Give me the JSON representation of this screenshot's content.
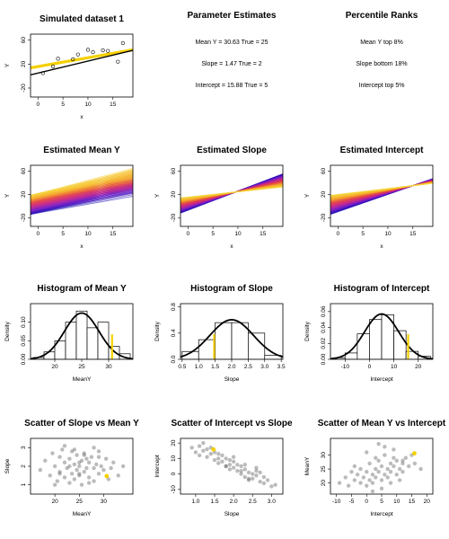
{
  "colors": {
    "highlight": "#f5d000",
    "black": "#000000",
    "scatter": "#555555"
  },
  "chart_data": [
    {
      "id": "sim",
      "type": "scatter",
      "title": "Simulated dataset 1",
      "xlabel": "x",
      "ylabel": "Y",
      "xlim": [
        -1.5,
        19
      ],
      "ylim": [
        -35,
        70
      ],
      "xticks": [
        0,
        5,
        10,
        15
      ],
      "yticks": [
        -20,
        20,
        60
      ],
      "points_x": [
        1,
        3,
        4,
        7,
        8,
        10,
        11,
        13,
        14,
        16,
        17
      ],
      "points_y": [
        5,
        16,
        29,
        28,
        36,
        44,
        40,
        43,
        42,
        24,
        55
      ],
      "fit_line": {
        "intercept": 15.88,
        "slope": 1.47
      },
      "true_line": {
        "intercept": 5,
        "slope": 2
      }
    },
    {
      "id": "params",
      "type": "table",
      "title": "Parameter Estimates",
      "lines": [
        "Mean Y = 30.63 True = 25",
        "Slope = 1.47 True = 2",
        "Intercept = 15.88 True = 5"
      ]
    },
    {
      "id": "ranks",
      "type": "table",
      "title": "Percentile Ranks",
      "lines": [
        "Mean Y top 8%",
        "Slope bottom 18%",
        "Intercept top 5%"
      ]
    },
    {
      "id": "lines_mean",
      "type": "line",
      "title": "Estimated Mean Y",
      "xlabel": "x",
      "ylabel": "Y",
      "xlim": [
        -1.5,
        19
      ],
      "ylim": [
        -35,
        70
      ],
      "xticks": [
        0,
        5,
        10,
        15
      ],
      "yticks": [
        -20,
        20,
        60
      ],
      "n_lines": 100,
      "intercept_range": [
        -12,
        22
      ],
      "slope_range": [
        1.5,
        2.4
      ],
      "color_by": "mean"
    },
    {
      "id": "lines_slope",
      "type": "line",
      "title": "Estimated Slope",
      "xlabel": "x",
      "ylabel": "Y",
      "xlim": [
        -1.5,
        19
      ],
      "ylim": [
        -35,
        70
      ],
      "xticks": [
        0,
        5,
        10,
        15
      ],
      "yticks": [
        -20,
        20,
        60
      ],
      "n_lines": 100,
      "pivot": [
        9.5,
        24
      ],
      "slope_range": [
        0.9,
        3.3
      ],
      "color_by": "slope"
    },
    {
      "id": "lines_int",
      "type": "line",
      "title": "Estimated Intercept",
      "xlabel": "x",
      "ylabel": "Y",
      "xlim": [
        -1.5,
        19
      ],
      "ylim": [
        -35,
        70
      ],
      "xticks": [
        0,
        5,
        10,
        15
      ],
      "yticks": [
        -20,
        20,
        60
      ],
      "n_lines": 100,
      "intercept_range": [
        -10,
        20
      ],
      "slope_range": [
        1.0,
        3.0
      ],
      "color_by": "intercept"
    },
    {
      "id": "hist_mean",
      "type": "bar",
      "title": "Histogram of Mean Y",
      "xlabel": "MeanY",
      "ylabel": "Density",
      "xlim": [
        15.5,
        34.5
      ],
      "ylim": [
        0,
        0.15
      ],
      "xticks": [
        20,
        25,
        30
      ],
      "yticks": [
        0,
        0.05,
        0.1
      ],
      "bin_edges": [
        16,
        18,
        20,
        22,
        24,
        26,
        28,
        30,
        32,
        34
      ],
      "densities": [
        0.005,
        0.02,
        0.05,
        0.1,
        0.13,
        0.085,
        0.1,
        0.035,
        0.015
      ],
      "normal": {
        "mean": 25,
        "sd": 3.2
      },
      "marker": 30.63
    },
    {
      "id": "hist_slope",
      "type": "bar",
      "title": "Histogram of Slope",
      "xlabel": "Slope",
      "ylabel": "Density",
      "xlim": [
        0.45,
        3.55
      ],
      "ylim": [
        0,
        0.85
      ],
      "xticks": [
        0.5,
        1.0,
        1.5,
        2.0,
        2.5,
        3.0,
        3.5
      ],
      "yticks": [
        0,
        0.4,
        0.8
      ],
      "bin_edges": [
        0.5,
        1.0,
        1.5,
        2.0,
        2.5,
        3.0,
        3.5
      ],
      "densities": [
        0.12,
        0.3,
        0.56,
        0.56,
        0.4,
        0.06
      ],
      "normal": {
        "mean": 2.0,
        "sd": 0.66
      },
      "marker": 1.47
    },
    {
      "id": "hist_int",
      "type": "bar",
      "title": "Histogram of Intercept",
      "xlabel": "Intercept",
      "ylabel": "Density",
      "xlim": [
        -16,
        26
      ],
      "ylim": [
        0,
        0.07
      ],
      "xticks": [
        -10,
        0,
        10,
        20
      ],
      "yticks": [
        0,
        0.02,
        0.04,
        0.06
      ],
      "bin_edges": [
        -15,
        -10,
        -5,
        0,
        5,
        10,
        15,
        20,
        25
      ],
      "densities": [
        0.002,
        0.008,
        0.032,
        0.05,
        0.056,
        0.036,
        0.01,
        0.004
      ],
      "normal": {
        "mean": 5,
        "sd": 7
      },
      "marker": 15.88
    },
    {
      "id": "sc_slope_mean",
      "type": "scatter",
      "title": "Scatter of Slope vs Mean Y",
      "xlabel": "MeanY",
      "ylabel": "Slope",
      "xlim": [
        15,
        36
      ],
      "ylim": [
        0.5,
        3.5
      ],
      "xticks": [
        20,
        25,
        30
      ],
      "yticks": [
        1.0,
        2.0,
        3.0
      ],
      "points_x": [
        17,
        18,
        19,
        19.5,
        20,
        20.5,
        21,
        21,
        21.5,
        22,
        22,
        22.5,
        23,
        23,
        23.5,
        23.5,
        24,
        24,
        24.5,
        24.5,
        25,
        25,
        25.5,
        25.5,
        26,
        26,
        26.5,
        26.5,
        27,
        27,
        27.5,
        28,
        28,
        28.5,
        29,
        29,
        29.5,
        30,
        30.5,
        31,
        31.5,
        32,
        33,
        34,
        22,
        24,
        26,
        28,
        20,
        25,
        27,
        23,
        25,
        29,
        21
      ],
      "points_y": [
        1.8,
        2.3,
        1.5,
        2.7,
        2.0,
        1.2,
        2.5,
        1.7,
        2.9,
        2.2,
        1.4,
        1.9,
        2.4,
        1.1,
        2.8,
        1.6,
        2.1,
        1.3,
        2.6,
        1.8,
        2.0,
        1.5,
        2.3,
        1.0,
        2.7,
        1.7,
        1.9,
        2.4,
        2.2,
        1.4,
        2.5,
        1.9,
        1.2,
        2.1,
        1.6,
        2.8,
        2.0,
        1.8,
        2.4,
        1.3,
        1.9,
        2.2,
        1.5,
        2.0,
        3.1,
        2.9,
        2.6,
        3.0,
        1.0,
        1.6,
        1.1,
        2.0,
        2.2,
        2.5,
        1.6
      ],
      "marker": [
        30.63,
        1.47
      ]
    },
    {
      "id": "sc_int_slope",
      "type": "scatter",
      "title": "Scatter of Intercept vs Slope",
      "xlabel": "Slope",
      "ylabel": "Intercept",
      "xlim": [
        0.6,
        3.3
      ],
      "ylim": [
        -13,
        23
      ],
      "xticks": [
        1.0,
        1.5,
        2.0,
        2.5,
        3.0
      ],
      "yticks": [
        -10,
        0,
        10,
        20
      ],
      "points_x": [
        0.9,
        1.0,
        1.1,
        1.1,
        1.2,
        1.3,
        1.3,
        1.4,
        1.5,
        1.5,
        1.6,
        1.6,
        1.7,
        1.7,
        1.8,
        1.8,
        1.9,
        1.9,
        2.0,
        2.0,
        2.1,
        2.1,
        2.2,
        2.2,
        2.3,
        2.3,
        2.4,
        2.4,
        2.5,
        2.5,
        2.6,
        2.6,
        2.7,
        2.8,
        2.8,
        2.9,
        3.0,
        3.1,
        1.4,
        1.9,
        2.3,
        2.6,
        1.2,
        2.0,
        2.4,
        1.6,
        2.2,
        2.7,
        1.8
      ],
      "points_y": [
        17,
        14,
        18,
        12,
        15,
        11,
        16,
        13,
        9,
        14,
        10,
        7,
        12,
        8,
        5,
        10,
        6,
        3,
        8,
        4,
        2,
        6,
        5,
        0,
        3,
        -2,
        1,
        -4,
        0,
        -3,
        -1,
        2,
        -5,
        -2,
        -6,
        -4,
        -8,
        -7,
        17,
        9,
        6,
        4,
        20,
        11,
        -3,
        13,
        2,
        1,
        5
      ],
      "marker": [
        1.47,
        15.88
      ]
    },
    {
      "id": "sc_mean_int",
      "type": "scatter",
      "title": "Scatter of Mean Y vs Intercept",
      "xlabel": "Intercept",
      "ylabel": "MeanY",
      "xlim": [
        -12,
        22
      ],
      "ylim": [
        16,
        36
      ],
      "xticks": [
        -10,
        -5,
        0,
        5,
        10,
        15,
        20
      ],
      "yticks": [
        20,
        25,
        30
      ],
      "points_x": [
        -9,
        -7,
        -6,
        -5,
        -4,
        -3,
        -2,
        -2,
        -1,
        0,
        0,
        1,
        1,
        2,
        2,
        3,
        3,
        4,
        4,
        5,
        5,
        6,
        6,
        7,
        7,
        8,
        8,
        9,
        9,
        10,
        10,
        11,
        12,
        12,
        13,
        14,
        15,
        16,
        18,
        0,
        3,
        6,
        9,
        12,
        -4,
        2,
        5,
        8,
        11,
        4
      ],
      "points_y": [
        20,
        22,
        19,
        24,
        21,
        23,
        20,
        25,
        22,
        19,
        24,
        21,
        27,
        23,
        20,
        25,
        22,
        28,
        24,
        21,
        26,
        23,
        30,
        25,
        22,
        27,
        24,
        29,
        26,
        23,
        28,
        25,
        27,
        24,
        29,
        26,
        30,
        27,
        25,
        31,
        29,
        33,
        32,
        28,
        26,
        17,
        18,
        20,
        21,
        34
      ],
      "marker": [
        15.88,
        30.63
      ]
    }
  ]
}
